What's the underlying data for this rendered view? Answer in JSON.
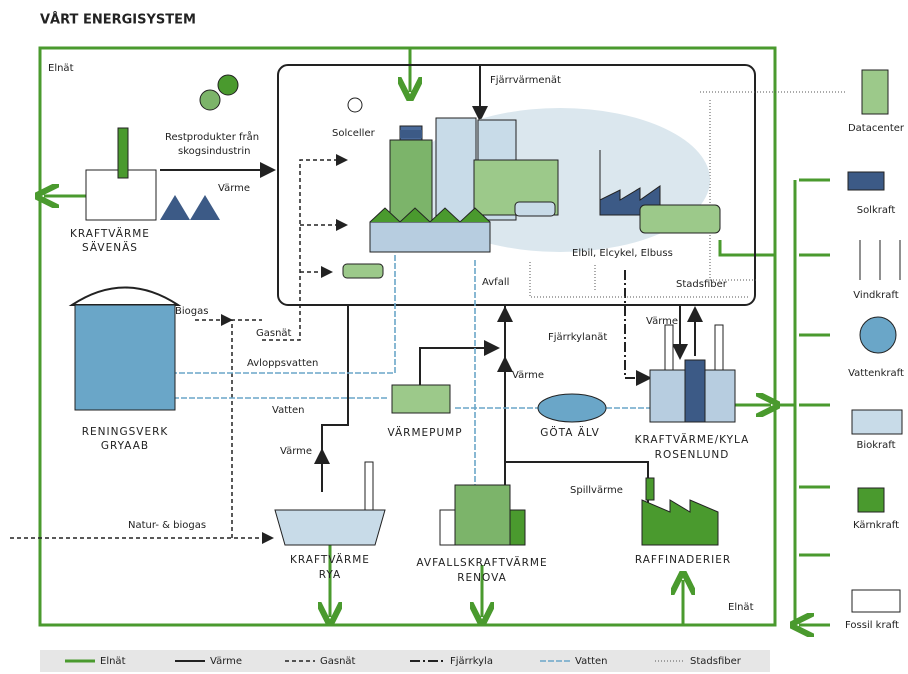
{
  "title": "VÅRT ENERGISYSTEM",
  "flow_labels": [
    "Elnät",
    "Restprodukter från",
    "skogsindustrin",
    "Värme",
    "Fjärrvärmenät",
    "Solceller",
    "Elbil, Elcykel, Elbuss",
    "Stadsfiber",
    "Avfall",
    "Biogas",
    "Gasnät",
    "Avloppsvatten",
    "Vatten",
    "Värme",
    "Värme",
    "Fjärrkylanät",
    "Värme",
    "Spillvärme",
    "Natur- & biogas",
    "Elnät"
  ],
  "plants": [
    [
      "KRAFTVÄRME",
      "SÄVENÄS"
    ],
    [
      "RENINGSVERK",
      "GRYAAB"
    ],
    [
      "VÄRMEPUMP"
    ],
    [
      "GÖTA ÄLV"
    ],
    [
      "KRAFTVÄRME/KYLA",
      "ROSENLUND"
    ],
    [
      "KRAFTVÄRME",
      "RYA"
    ],
    [
      "AVFALLSKRAFTVÄRME",
      "RENOVA"
    ],
    [
      "RAFFINADERIER"
    ]
  ],
  "sources": [
    "Datacenter",
    "Solkraft",
    "Vindkraft",
    "Vattenkraft",
    "Biokraft",
    "Kärnkraft",
    "Fossil kraft"
  ],
  "legend": [
    "Elnät",
    "Värme",
    "Gasnät",
    "Fjärrkyla",
    "Vatten",
    "Stadsfiber"
  ]
}
